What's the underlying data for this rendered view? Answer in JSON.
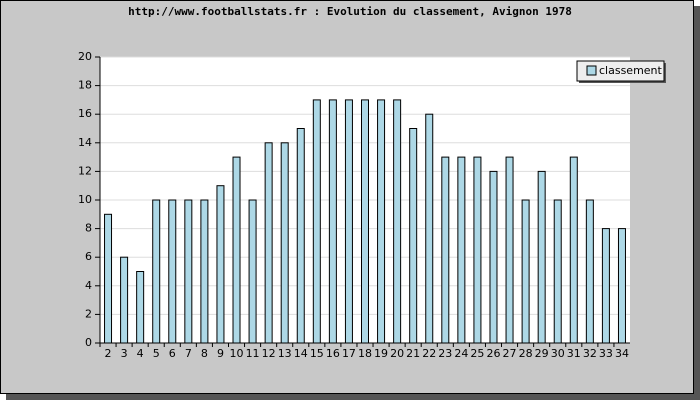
{
  "chart_data": {
    "type": "bar",
    "title": "http://www.footballstats.fr : Evolution du classement, Avignon 1978",
    "categories": [
      "2",
      "3",
      "4",
      "5",
      "6",
      "7",
      "8",
      "9",
      "10",
      "11",
      "12",
      "13",
      "14",
      "15",
      "16",
      "17",
      "18",
      "19",
      "20",
      "21",
      "22",
      "23",
      "24",
      "25",
      "26",
      "27",
      "28",
      "29",
      "30",
      "31",
      "32",
      "33",
      "34"
    ],
    "series": [
      {
        "name": "classement",
        "color": "#add8e6",
        "values": [
          9,
          6,
          5,
          10,
          10,
          10,
          10,
          11,
          13,
          10,
          14,
          14,
          15,
          17,
          17,
          17,
          17,
          17,
          17,
          15,
          16,
          13,
          13,
          13,
          12,
          13,
          10,
          12,
          10,
          13,
          10,
          8,
          8
        ]
      }
    ],
    "ylim": [
      0,
      20
    ],
    "yticks": [
      0,
      2,
      4,
      6,
      8,
      10,
      12,
      14,
      16,
      18,
      20
    ],
    "grid": true,
    "legend": "top-right"
  }
}
